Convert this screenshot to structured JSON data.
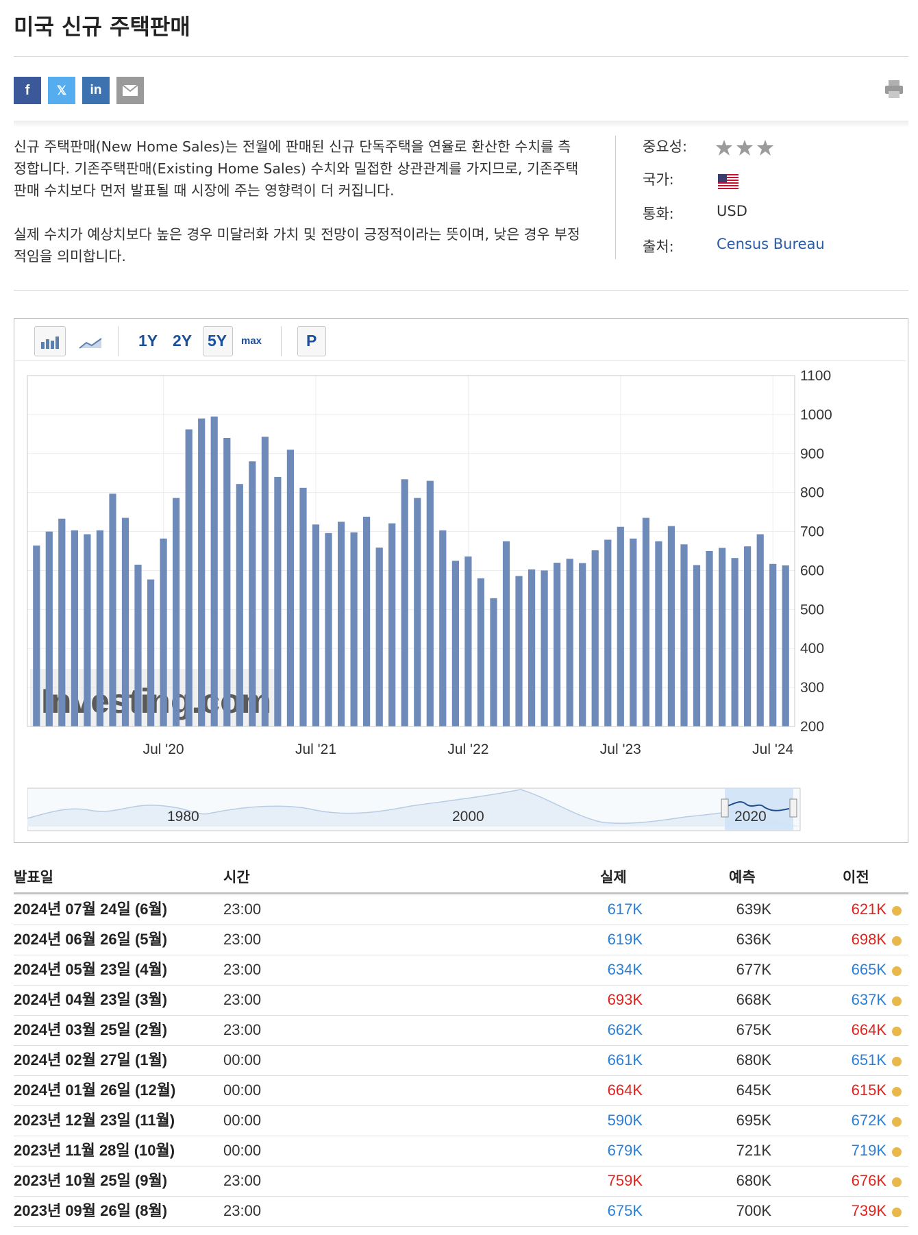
{
  "page": {
    "title": "미국 신규 주택판매",
    "description": [
      "신규 주택판매(New Home Sales)는 전월에 판매된 신규 단독주택을 연율로 환산한 수치를 측정합니다. 기존주택판매(Existing Home Sales) 수치와 밀접한 상관관계를 가지므로, 기존주택판매 수치보다 먼저 발표될 때 시장에 주는 영향력이 더 커집니다.",
      "실제 수치가 예상치보다 높은 경우 미달러화 가치 및 전망이 긍정적이라는 뜻이며, 낮은 경우 부정적임을 의미합니다."
    ]
  },
  "share": {
    "facebook": "f",
    "twitter": "𝕏",
    "linkedin": "in"
  },
  "meta": {
    "importance_label": "중요성:",
    "importance_stars": 3,
    "country_label": "국가:",
    "currency_label": "통화:",
    "currency": "USD",
    "source_label": "출처:",
    "source": "Census Bureau"
  },
  "toolbar": {
    "range_1y": "1Y",
    "range_2y": "2Y",
    "range_5y": "5Y",
    "range_max": "max",
    "p": "P"
  },
  "chart_data": {
    "type": "bar",
    "y_axis_position": "right",
    "ylim": [
      200,
      1100
    ],
    "y_ticks": [
      200,
      300,
      400,
      500,
      600,
      700,
      800,
      900,
      1000,
      1100
    ],
    "x_ticks": [
      "Jul '20",
      "Jul '21",
      "Jul '22",
      "Jul '23",
      "Jul '24"
    ],
    "x_tick_indices": [
      10.5,
      22.5,
      34.5,
      46.5,
      58.5
    ],
    "watermark": "Investing.com",
    "values": [
      664,
      700,
      733,
      703,
      693,
      703,
      797,
      735,
      615,
      577,
      682,
      786,
      962,
      990,
      995,
      940,
      822,
      880,
      943,
      840,
      910,
      812,
      718,
      696,
      725,
      698,
      738,
      659,
      721,
      834,
      786,
      830,
      703,
      625,
      636,
      580,
      529,
      675,
      586,
      603,
      600,
      620,
      630,
      619,
      652,
      679,
      712,
      682,
      735,
      675,
      714,
      667,
      614,
      650,
      658,
      632,
      662,
      693,
      617,
      613
    ],
    "navigator_labels": [
      "1980",
      "2000",
      "2020"
    ],
    "colors": {
      "bar": "#6d8ab8",
      "navigator_fill": "#d7e6f5",
      "navigator_line": "#1f4e8c"
    }
  },
  "table": {
    "headers": {
      "date": "발표일",
      "time": "시간",
      "actual": "실제",
      "forecast": "예측",
      "previous": "이전"
    },
    "rows": [
      {
        "date": "2024년 07월 24일 (6월)",
        "time": "23:00",
        "actual": "617K",
        "actual_color": "#2a7fd6",
        "forecast": "639K",
        "previous": "621K",
        "previous_color": "#e0231c"
      },
      {
        "date": "2024년 06월 26일 (5월)",
        "time": "23:00",
        "actual": "619K",
        "actual_color": "#2a7fd6",
        "forecast": "636K",
        "previous": "698K",
        "previous_color": "#e0231c"
      },
      {
        "date": "2024년 05월 23일 (4월)",
        "time": "23:00",
        "actual": "634K",
        "actual_color": "#2a7fd6",
        "forecast": "677K",
        "previous": "665K",
        "previous_color": "#2a7fd6"
      },
      {
        "date": "2024년 04월 23일 (3월)",
        "time": "23:00",
        "actual": "693K",
        "actual_color": "#e0231c",
        "forecast": "668K",
        "previous": "637K",
        "previous_color": "#2a7fd6"
      },
      {
        "date": "2024년 03월 25일 (2월)",
        "time": "23:00",
        "actual": "662K",
        "actual_color": "#2a7fd6",
        "forecast": "675K",
        "previous": "664K",
        "previous_color": "#e0231c"
      },
      {
        "date": "2024년 02월 27일 (1월)",
        "time": "00:00",
        "actual": "661K",
        "actual_color": "#2a7fd6",
        "forecast": "680K",
        "previous": "651K",
        "previous_color": "#2a7fd6"
      },
      {
        "date": "2024년 01월 26일 (12월)",
        "time": "00:00",
        "actual": "664K",
        "actual_color": "#e0231c",
        "forecast": "645K",
        "previous": "615K",
        "previous_color": "#e0231c"
      },
      {
        "date": "2023년 12월 23일 (11월)",
        "time": "00:00",
        "actual": "590K",
        "actual_color": "#2a7fd6",
        "forecast": "695K",
        "previous": "672K",
        "previous_color": "#2a7fd6"
      },
      {
        "date": "2023년 11월 28일 (10월)",
        "time": "00:00",
        "actual": "679K",
        "actual_color": "#2a7fd6",
        "forecast": "721K",
        "previous": "719K",
        "previous_color": "#2a7fd6"
      },
      {
        "date": "2023년 10월 25일 (9월)",
        "time": "23:00",
        "actual": "759K",
        "actual_color": "#e0231c",
        "forecast": "680K",
        "previous": "676K",
        "previous_color": "#e0231c"
      },
      {
        "date": "2023년 09월 26일 (8월)",
        "time": "23:00",
        "actual": "675K",
        "actual_color": "#2a7fd6",
        "forecast": "700K",
        "previous": "739K",
        "previous_color": "#e0231c"
      }
    ]
  }
}
